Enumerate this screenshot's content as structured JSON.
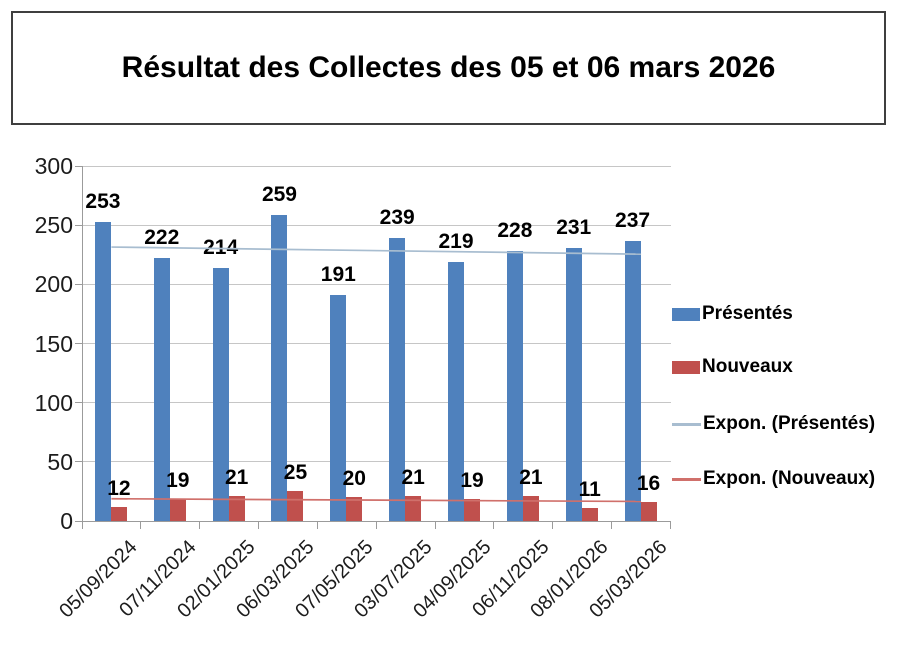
{
  "title": "Résultat des Collectes des 05 et 06 mars 2026",
  "chart_data": {
    "type": "bar",
    "title": "Résultat des Collectes des 05 et 06 mars 2026",
    "categories": [
      "05/09/2024",
      "07/11/2024",
      "02/01/2025",
      "06/03/2025",
      "07/05/2025",
      "03/07/2025",
      "04/09/2025",
      "06/11/2025",
      "08/01/2026",
      "05/03/2026"
    ],
    "series": [
      {
        "name": "Présentés",
        "color": "#4f81bd",
        "values": [
          253,
          222,
          214,
          259,
          191,
          239,
          219,
          228,
          231,
          237
        ]
      },
      {
        "name": "Nouveaux",
        "color": "#c0504d",
        "values": [
          12,
          19,
          21,
          25,
          20,
          21,
          19,
          21,
          11,
          16
        ]
      }
    ],
    "trendlines": [
      {
        "name": "Expon. (Présentés)",
        "color": "#a8bdd0",
        "start": 231.5,
        "end": 225.5
      },
      {
        "name": "Expon. (Nouveaux)",
        "color": "#d0706b",
        "start": 18.8,
        "end": 16.5
      }
    ],
    "y_axis": {
      "min": 0,
      "max": 300,
      "step": 50,
      "ticks": [
        "300",
        "250",
        "200",
        "150",
        "100",
        "50",
        "0"
      ]
    },
    "x_axis": {
      "label_rotation_deg": -45
    },
    "legend": {
      "position": "right",
      "entries": [
        "Présentés",
        "Nouveaux",
        "Expon. (Présentés)",
        "Expon. (Nouveaux)"
      ]
    },
    "grid": true,
    "data_labels_bold": true
  }
}
